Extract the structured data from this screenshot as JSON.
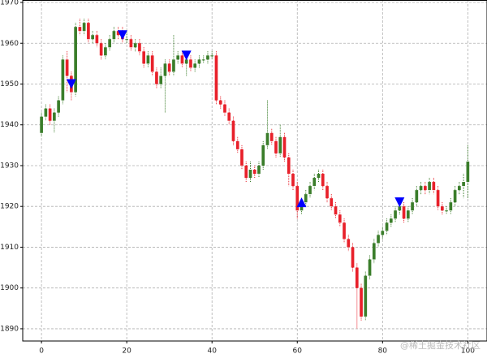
{
  "chart_data": {
    "type": "candlestick",
    "x": [
      0,
      1,
      2,
      3,
      4,
      5,
      6,
      7,
      8,
      9,
      10,
      11,
      12,
      13,
      14,
      15,
      16,
      17,
      18,
      19,
      20,
      21,
      22,
      23,
      24,
      25,
      26,
      27,
      28,
      29,
      30,
      31,
      32,
      33,
      34,
      35,
      36,
      37,
      38,
      39,
      40,
      41,
      42,
      43,
      44,
      45,
      46,
      47,
      48,
      49,
      50,
      51,
      52,
      53,
      54,
      55,
      56,
      57,
      58,
      59,
      60,
      61,
      62,
      63,
      64,
      65,
      66,
      67,
      68,
      69,
      70,
      71,
      72,
      73,
      74,
      75,
      76,
      77,
      78,
      79,
      80,
      81,
      82,
      83,
      84,
      85,
      86,
      87,
      88,
      89,
      90,
      91,
      92,
      93,
      94,
      95,
      96,
      97,
      98,
      99,
      100
    ],
    "open": [
      1938,
      1942,
      1944,
      1941,
      1943,
      1946,
      1956,
      1952,
      1948,
      1964,
      1963,
      1965,
      1961,
      1962,
      1960,
      1957,
      1959,
      1961,
      1963,
      1962,
      1961,
      1961,
      1959,
      1960,
      1958,
      1955,
      1957,
      1953,
      1950,
      1952,
      1955,
      1953,
      1956,
      1957,
      1955,
      1956,
      1954,
      1955,
      1956,
      1956,
      1957,
      1957,
      1946,
      1945,
      1943,
      1941,
      1936,
      1934,
      1930,
      1927,
      1929,
      1928,
      1930,
      1935,
      1938,
      1936,
      1933,
      1937,
      1932,
      1928,
      1925,
      1919,
      1921,
      1923,
      1925,
      1927,
      1928,
      1925,
      1922,
      1920,
      1918,
      1916,
      1912,
      1910,
      1905,
      1900,
      1893,
      1903,
      1907,
      1911,
      1913,
      1914,
      1916,
      1917,
      1919,
      1920,
      1917,
      1919,
      1921,
      1924,
      1925,
      1924,
      1926,
      1924,
      1920,
      1919,
      1919,
      1921,
      1924,
      1925,
      1926
    ],
    "high": [
      1943,
      1945,
      1945,
      1944,
      1947,
      1957,
      1958,
      1953,
      1965,
      1966,
      1966,
      1966,
      1963,
      1963,
      1961,
      1960,
      1962,
      1964,
      1964,
      1964,
      1963,
      1962,
      1961,
      1961,
      1959,
      1958,
      1958,
      1954,
      1954,
      1956,
      1956,
      1962,
      1958,
      1958,
      1957,
      1957,
      1956,
      1957,
      1957,
      1958,
      1958,
      1958,
      1947,
      1946,
      1944,
      1942,
      1937,
      1935,
      1931,
      1931,
      1930,
      1931,
      1936,
      1946,
      1939,
      1937,
      1940,
      1938,
      1933,
      1929,
      1926,
      1922,
      1924,
      1926,
      1928,
      1929,
      1929,
      1926,
      1923,
      1921,
      1919,
      1917,
      1913,
      1911,
      1906,
      1901,
      1904,
      1908,
      1912,
      1914,
      1915,
      1917,
      1918,
      1920,
      1921,
      1921,
      1920,
      1922,
      1925,
      1926,
      1926,
      1927,
      1927,
      1925,
      1921,
      1920,
      1922,
      1925,
      1926,
      1928,
      1935
    ],
    "low": [
      1937,
      1941,
      1940,
      1938,
      1942,
      1945,
      1948,
      1946,
      1947,
      1962,
      1962,
      1960,
      1960,
      1959,
      1956,
      1956,
      1958,
      1960,
      1961,
      1960,
      1960,
      1958,
      1958,
      1957,
      1954,
      1954,
      1952,
      1949,
      1949,
      1943,
      1952,
      1952,
      1955,
      1954,
      1952,
      1953,
      1953,
      1954,
      1955,
      1955,
      1956,
      1945,
      1944,
      1942,
      1940,
      1935,
      1933,
      1929,
      1926,
      1926,
      1927,
      1927,
      1929,
      1934,
      1935,
      1932,
      1932,
      1931,
      1925,
      1924,
      1917,
      1918,
      1920,
      1922,
      1924,
      1926,
      1924,
      1921,
      1919,
      1917,
      1915,
      1911,
      1909,
      1904,
      1890,
      1892,
      1892,
      1902,
      1906,
      1910,
      1912,
      1913,
      1915,
      1916,
      1918,
      1916,
      1916,
      1918,
      1920,
      1923,
      1923,
      1923,
      1923,
      1919,
      1918,
      1918,
      1918,
      1920,
      1923,
      1922,
      1922
    ],
    "close": [
      1942,
      1944,
      1941,
      1943,
      1946,
      1956,
      1952,
      1948,
      1964,
      1963,
      1965,
      1961,
      1962,
      1960,
      1957,
      1959,
      1961,
      1963,
      1962,
      1961,
      1961,
      1959,
      1960,
      1958,
      1955,
      1957,
      1953,
      1950,
      1952,
      1955,
      1953,
      1956,
      1957,
      1955,
      1956,
      1954,
      1955,
      1956,
      1956,
      1957,
      1957,
      1946,
      1945,
      1943,
      1941,
      1936,
      1934,
      1930,
      1927,
      1929,
      1928,
      1930,
      1935,
      1938,
      1936,
      1933,
      1937,
      1932,
      1928,
      1925,
      1919,
      1921,
      1923,
      1925,
      1927,
      1928,
      1925,
      1922,
      1920,
      1918,
      1916,
      1912,
      1910,
      1905,
      1900,
      1893,
      1903,
      1907,
      1911,
      1913,
      1914,
      1916,
      1917,
      1919,
      1920,
      1917,
      1919,
      1921,
      1924,
      1925,
      1924,
      1926,
      1924,
      1920,
      1919,
      1919,
      1921,
      1924,
      1925,
      1926,
      1931
    ],
    "up_color": "#3a7d2a",
    "down_color": "#e8202a",
    "signals_down": {
      "x": [
        7,
        19,
        34,
        84
      ],
      "values": [
        1950,
        1962,
        1957,
        1921
      ]
    },
    "signals_up": {
      "x": [
        61
      ],
      "values": [
        1921
      ]
    },
    "marker_color": "#0000ff",
    "xlim": [
      -4.4,
      104.5
    ],
    "ylim": [
      1887,
      1970.6
    ],
    "xticks": [
      0,
      20,
      40,
      60,
      80,
      100
    ],
    "yticks": [
      1890,
      1900,
      1910,
      1920,
      1930,
      1940,
      1950,
      1960,
      1970
    ],
    "grid": true,
    "watermark": "@稀土掘金技术社区"
  }
}
